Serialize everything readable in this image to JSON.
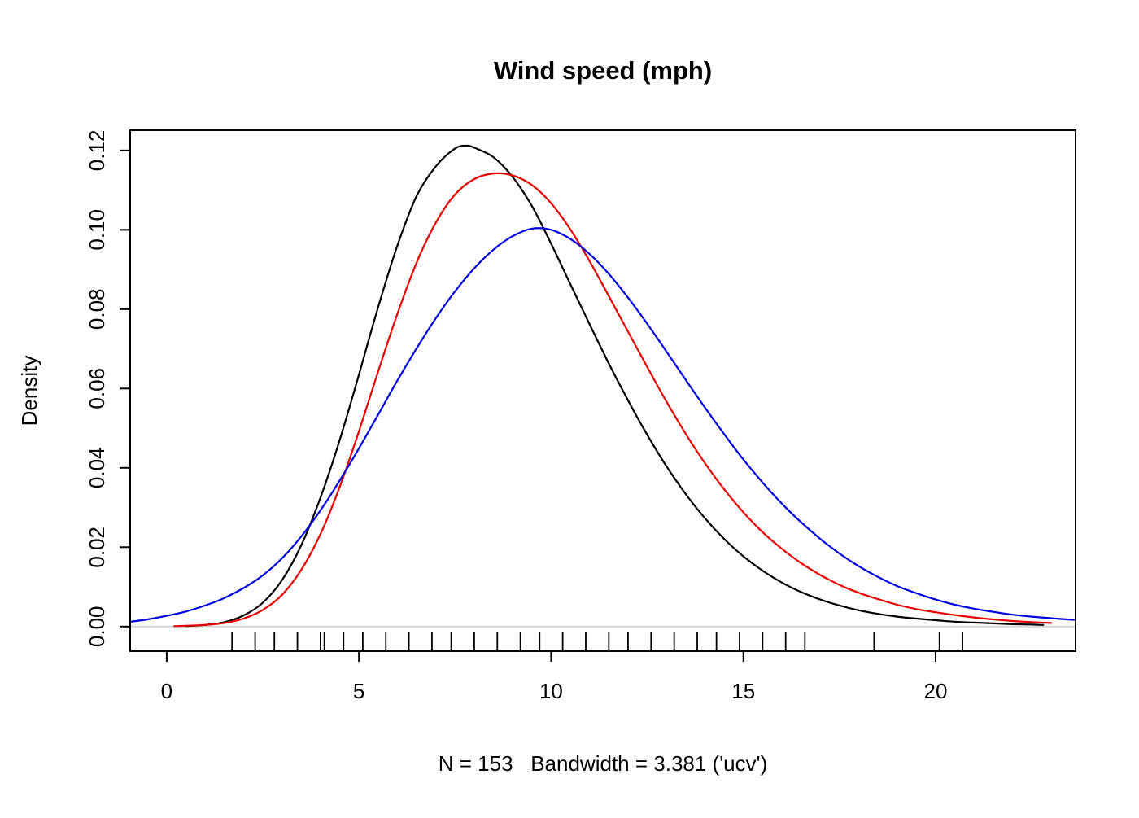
{
  "chart_data": {
    "type": "line",
    "title": "Wind speed (mph)",
    "ylabel": "Density",
    "xlabel": "N = 153   Bandwidth = 3.381 ('ucv')",
    "n": 153,
    "bandwidth": 3.381,
    "bandwidth_method": "ucv",
    "xlim": [
      -0.95,
      23.64
    ],
    "ylim": [
      -0.0062,
      0.1251
    ],
    "x_ticks": [
      0,
      5,
      10,
      15,
      20
    ],
    "x_tick_labels": [
      "0",
      "5",
      "10",
      "15",
      "20"
    ],
    "y_ticks": [
      0.0,
      0.02,
      0.04,
      0.06,
      0.08,
      0.1,
      0.12
    ],
    "y_tick_labels": [
      "0.00",
      "0.02",
      "0.04",
      "0.06",
      "0.08",
      "0.10",
      "0.12"
    ],
    "grid": false,
    "legend": "none",
    "zero_line_color": "#d6d6d6",
    "box_color": "#000000",
    "series": [
      {
        "name": "density-default",
        "color": "#000000",
        "peak": {
          "x": 7.8,
          "y": 0.121
        },
        "points": [
          [
            0.5,
            0.0001
          ],
          [
            1,
            0.0004
          ],
          [
            1.5,
            0.0011
          ],
          [
            2,
            0.0028
          ],
          [
            2.5,
            0.006
          ],
          [
            3,
            0.0117
          ],
          [
            3.5,
            0.0205
          ],
          [
            4,
            0.0325
          ],
          [
            4.5,
            0.047
          ],
          [
            5,
            0.0635
          ],
          [
            5.5,
            0.0805
          ],
          [
            6,
            0.096
          ],
          [
            6.5,
            0.1085
          ],
          [
            7,
            0.116
          ],
          [
            7.5,
            0.1205
          ],
          [
            7.8,
            0.1212
          ],
          [
            8,
            0.1207
          ],
          [
            8.5,
            0.1183
          ],
          [
            9,
            0.1133
          ],
          [
            9.5,
            0.106
          ],
          [
            10,
            0.0965
          ],
          [
            10.5,
            0.0863
          ],
          [
            11,
            0.0762
          ],
          [
            11.5,
            0.0663
          ],
          [
            12,
            0.057
          ],
          [
            12.5,
            0.0483
          ],
          [
            13,
            0.0404
          ],
          [
            13.5,
            0.0334
          ],
          [
            14,
            0.0273
          ],
          [
            14.5,
            0.0221
          ],
          [
            15,
            0.0177
          ],
          [
            15.5,
            0.0141
          ],
          [
            16,
            0.0111
          ],
          [
            16.5,
            0.0087
          ],
          [
            17,
            0.0068
          ],
          [
            17.5,
            0.0053
          ],
          [
            18,
            0.0041
          ],
          [
            18.5,
            0.0032
          ],
          [
            19,
            0.0025
          ],
          [
            19.5,
            0.002
          ],
          [
            20,
            0.0016
          ],
          [
            20.5,
            0.0012
          ],
          [
            21,
            0.001
          ],
          [
            21.5,
            0.0008
          ],
          [
            22,
            0.0006
          ],
          [
            22.5,
            0.0005
          ],
          [
            22.8,
            0.0004
          ]
        ]
      },
      {
        "name": "density-red",
        "color": "#e60000",
        "peak": {
          "x": 8.5,
          "y": 0.114
        },
        "points": [
          [
            0.2,
            0.0001
          ],
          [
            0.5,
            0.0002
          ],
          [
            1,
            0.0004
          ],
          [
            1.5,
            0.0009
          ],
          [
            2,
            0.002
          ],
          [
            2.5,
            0.0042
          ],
          [
            3,
            0.008
          ],
          [
            3.5,
            0.0143
          ],
          [
            4,
            0.0233
          ],
          [
            4.5,
            0.0352
          ],
          [
            5,
            0.0492
          ],
          [
            5.5,
            0.0643
          ],
          [
            6,
            0.0788
          ],
          [
            6.5,
            0.0917
          ],
          [
            7,
            0.1018
          ],
          [
            7.5,
            0.1089
          ],
          [
            8,
            0.1128
          ],
          [
            8.5,
            0.1142
          ],
          [
            9,
            0.1137
          ],
          [
            9.5,
            0.1113
          ],
          [
            10,
            0.1067
          ],
          [
            10.5,
            0.1001
          ],
          [
            11,
            0.0921
          ],
          [
            11.5,
            0.0833
          ],
          [
            12,
            0.0743
          ],
          [
            12.5,
            0.0654
          ],
          [
            13,
            0.0567
          ],
          [
            13.5,
            0.0486
          ],
          [
            14,
            0.0412
          ],
          [
            14.5,
            0.0346
          ],
          [
            15,
            0.0288
          ],
          [
            15.5,
            0.0238
          ],
          [
            16,
            0.0196
          ],
          [
            16.5,
            0.016
          ],
          [
            17,
            0.013
          ],
          [
            17.5,
            0.0105
          ],
          [
            18,
            0.0085
          ],
          [
            18.5,
            0.0069
          ],
          [
            19,
            0.0055
          ],
          [
            19.5,
            0.0044
          ],
          [
            20,
            0.0036
          ],
          [
            20.5,
            0.0029
          ],
          [
            21,
            0.0023
          ],
          [
            21.5,
            0.0018
          ],
          [
            22,
            0.0014
          ],
          [
            22.5,
            0.0011
          ],
          [
            23,
            0.0009
          ]
        ]
      },
      {
        "name": "density-blue",
        "color": "#0000e0",
        "peak": {
          "x": 9.5,
          "y": 0.1005
        },
        "points": [
          [
            -0.95,
            0.0012
          ],
          [
            -0.5,
            0.0018
          ],
          [
            0,
            0.0027
          ],
          [
            0.5,
            0.0038
          ],
          [
            1,
            0.0053
          ],
          [
            1.5,
            0.0072
          ],
          [
            2,
            0.0097
          ],
          [
            2.5,
            0.0129
          ],
          [
            3,
            0.0172
          ],
          [
            3.5,
            0.0227
          ],
          [
            4,
            0.0293
          ],
          [
            4.5,
            0.0368
          ],
          [
            5,
            0.0449
          ],
          [
            5.5,
            0.0534
          ],
          [
            6,
            0.062
          ],
          [
            6.5,
            0.0701
          ],
          [
            7,
            0.0777
          ],
          [
            7.5,
            0.0845
          ],
          [
            8,
            0.0903
          ],
          [
            8.5,
            0.095
          ],
          [
            9,
            0.0984
          ],
          [
            9.5,
            0.1003
          ],
          [
            10,
            0.1
          ],
          [
            10.5,
            0.0977
          ],
          [
            11,
            0.0939
          ],
          [
            11.5,
            0.0889
          ],
          [
            12,
            0.0829
          ],
          [
            12.5,
            0.0763
          ],
          [
            13,
            0.0693
          ],
          [
            13.5,
            0.0622
          ],
          [
            14,
            0.0552
          ],
          [
            14.5,
            0.0485
          ],
          [
            15,
            0.0421
          ],
          [
            15.5,
            0.0363
          ],
          [
            16,
            0.031
          ],
          [
            16.5,
            0.0263
          ],
          [
            17,
            0.0221
          ],
          [
            17.5,
            0.0184
          ],
          [
            18,
            0.0152
          ],
          [
            18.5,
            0.0125
          ],
          [
            19,
            0.0102
          ],
          [
            19.5,
            0.0084
          ],
          [
            20,
            0.0068
          ],
          [
            20.5,
            0.0055
          ],
          [
            21,
            0.0045
          ],
          [
            21.5,
            0.0037
          ],
          [
            22,
            0.003
          ],
          [
            22.5,
            0.0025
          ],
          [
            23,
            0.0021
          ],
          [
            23.6,
            0.0017
          ]
        ]
      }
    ],
    "rug": [
      1.7,
      2.3,
      2.8,
      3.4,
      4.0,
      4.1,
      4.6,
      5.1,
      5.7,
      6.3,
      6.9,
      7.4,
      8.0,
      8.6,
      9.2,
      9.7,
      10.3,
      10.9,
      11.5,
      12.0,
      12.6,
      13.2,
      13.8,
      14.3,
      14.9,
      15.5,
      16.1,
      16.6,
      18.4,
      20.1,
      20.7
    ]
  }
}
